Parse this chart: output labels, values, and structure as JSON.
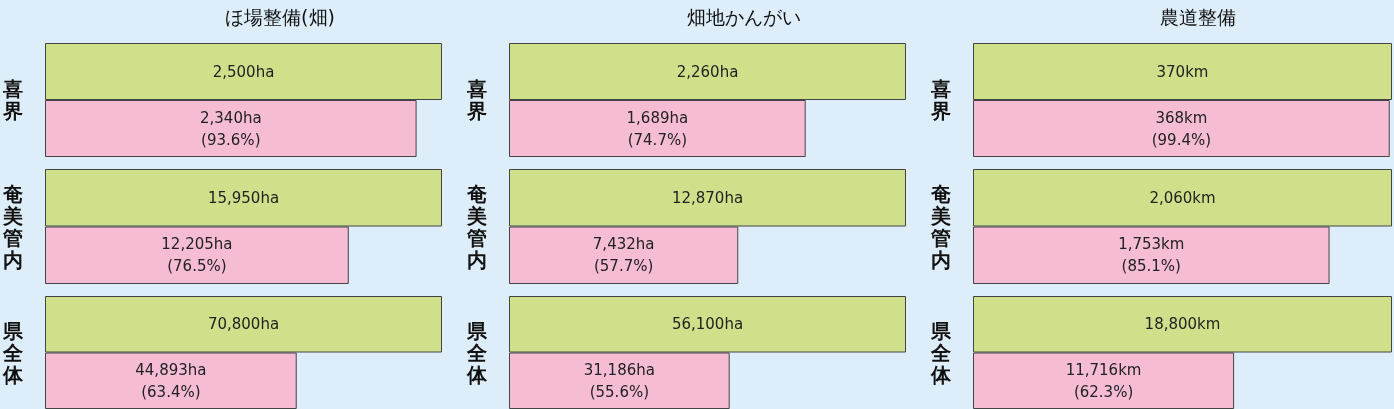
{
  "chart_data": [
    {
      "type": "bar",
      "orientation": "horizontal",
      "title": "ほ場整備(畑)",
      "ylabel": "喜界",
      "categories": [
        null,
        null
      ],
      "values": [
        2500,
        2340
      ],
      "colors": [
        "#cfe08a",
        "#f6bcd4"
      ],
      "value_labels": [
        "2,500ha",
        "2,340ha\n(93.6%)"
      ]
    },
    {
      "type": "bar",
      "orientation": "horizontal",
      "title": "畑地かんがい",
      "ylabel": "喜界",
      "categories": [
        null,
        null
      ],
      "values": [
        2260,
        1689
      ],
      "colors": [
        "#cfe08a",
        "#f6bcd4"
      ],
      "value_labels": [
        "2,260ha",
        "1,689ha\n(74.7%)"
      ]
    },
    {
      "type": "bar",
      "orientation": "horizontal",
      "title": "農道整備",
      "ylabel": "喜界",
      "categories": [
        null,
        null
      ],
      "values": [
        370,
        368
      ],
      "colors": [
        "#cfe08a",
        "#f6bcd4"
      ],
      "value_labels": [
        "370km",
        "368km\n(99.4%)"
      ]
    },
    {
      "type": "bar",
      "orientation": "horizontal",
      "ylabel": "奄美管内",
      "categories": [
        null,
        null
      ],
      "values": [
        15950,
        12205
      ],
      "colors": [
        "#cfe08a",
        "#f6bcd4"
      ],
      "value_labels": [
        "15,950ha",
        "12,205ha\n(76.5%)"
      ]
    },
    {
      "type": "bar",
      "orientation": "horizontal",
      "ylabel": "奄美管内",
      "categories": [
        null,
        null
      ],
      "values": [
        12870,
        7432
      ],
      "colors": [
        "#cfe08a",
        "#f6bcd4"
      ],
      "value_labels": [
        "12,870ha",
        "7,432ha\n(57.7%)"
      ]
    },
    {
      "type": "bar",
      "orientation": "horizontal",
      "ylabel": "奄美管内",
      "categories": [
        null,
        null
      ],
      "values": [
        2060,
        1753
      ],
      "colors": [
        "#cfe08a",
        "#f6bcd4"
      ],
      "value_labels": [
        "2,060km",
        "1,753km\n(85.1%)"
      ]
    },
    {
      "type": "bar",
      "orientation": "horizontal",
      "ylabel": "県全体",
      "categories": [
        null,
        null
      ],
      "values": [
        70800,
        44893
      ],
      "colors": [
        "#cfe08a",
        "#f6bcd4"
      ],
      "value_labels": [
        "70,800ha",
        "44,893ha\n(63.4%)"
      ]
    },
    {
      "type": "bar",
      "orientation": "horizontal",
      "ylabel": "県全体",
      "categories": [
        null,
        null
      ],
      "values": [
        56100,
        31186
      ],
      "colors": [
        "#cfe08a",
        "#f6bcd4"
      ],
      "value_labels": [
        "56,100ha",
        "31,186ha\n(55.6%)"
      ]
    },
    {
      "type": "bar",
      "orientation": "horizontal",
      "ylabel": "県全体",
      "categories": [
        null,
        null
      ],
      "values": [
        18800,
        11716
      ],
      "colors": [
        "#cfe08a",
        "#f6bcd4"
      ],
      "value_labels": [
        "18,800km",
        "11,716km\n(62.3%)"
      ]
    }
  ]
}
